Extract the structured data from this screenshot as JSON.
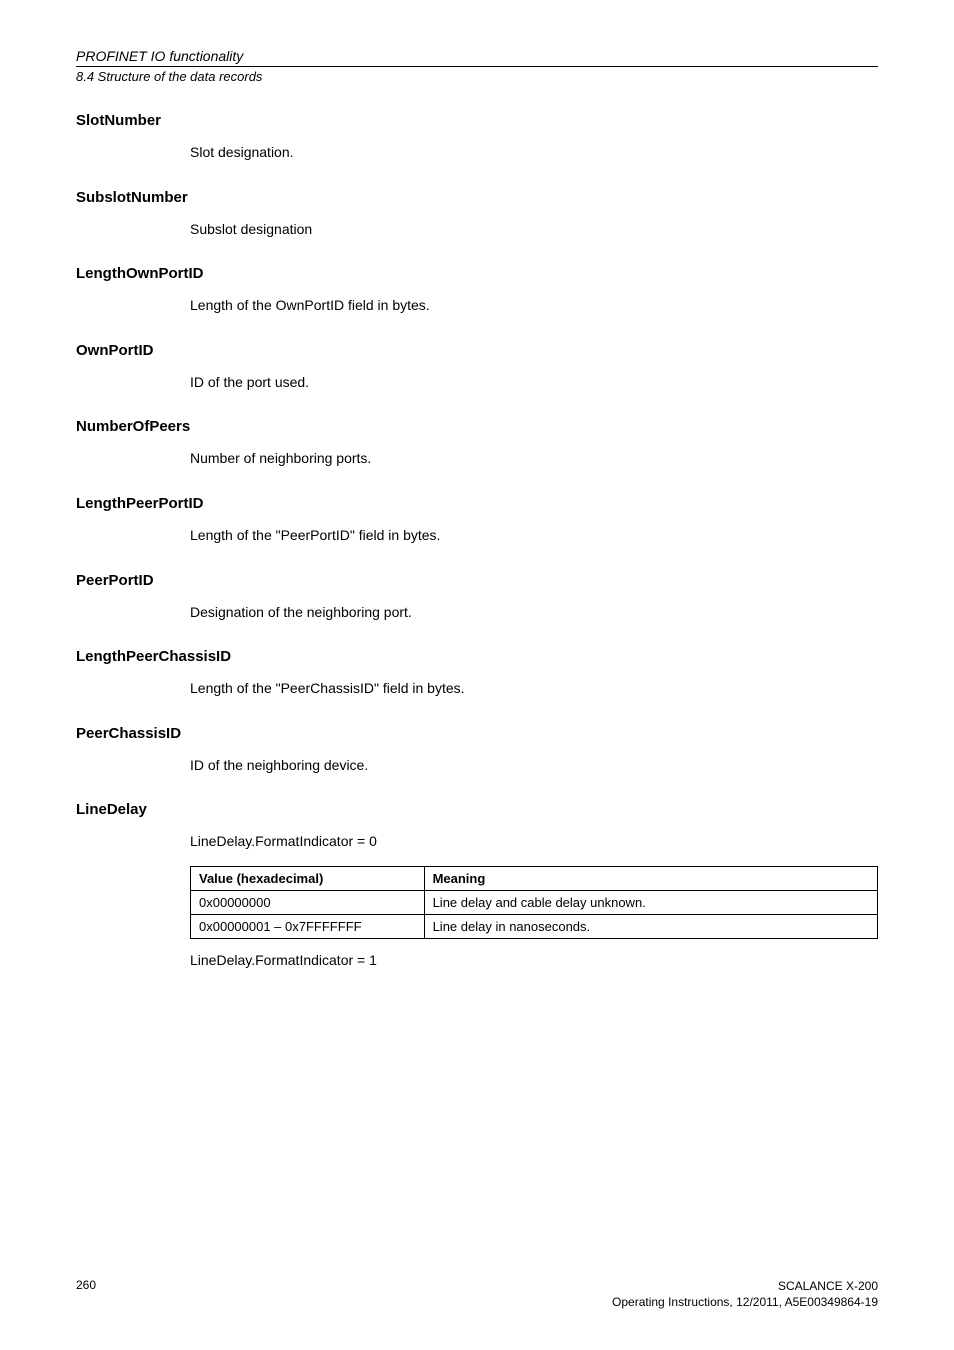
{
  "header": {
    "title_italic": "PROFINET IO functionality",
    "subtitle_italic": "8.4 Structure of the data records"
  },
  "sections": {
    "slotNumber": {
      "heading": "SlotNumber",
      "body": "Slot designation."
    },
    "subslotNumber": {
      "heading": "SubslotNumber",
      "body": "Subslot designation"
    },
    "lengthOwnPortID": {
      "heading": "LengthOwnPortID",
      "body": "Length of the OwnPortID field in bytes."
    },
    "ownPortID": {
      "heading": "OwnPortID",
      "body": "ID of the port used."
    },
    "numberOfPeers": {
      "heading": "NumberOfPeers",
      "body": "Number of neighboring ports."
    },
    "lengthPeerPortID": {
      "heading": "LengthPeerPortID",
      "body": "Length of the \"PeerPortID\" field in bytes."
    },
    "peerPortID": {
      "heading": "PeerPortID",
      "body": "Designation of the neighboring port."
    },
    "lengthPeerChassisID": {
      "heading": "LengthPeerChassisID",
      "body": "Length of the \"PeerChassisID\" field in bytes."
    },
    "peerChassisID": {
      "heading": "PeerChassisID",
      "body": "ID of the neighboring device."
    },
    "lineDelay": {
      "heading": "LineDelay",
      "body1": "LineDelay.FormatIndicator = 0",
      "table": {
        "col_value_header": "Value (hexadecimal)",
        "col_meaning_header": "Meaning",
        "rows": [
          {
            "value": "0x00000000",
            "meaning": "Line delay and cable delay unknown."
          },
          {
            "value": "0x00000001 – 0x7FFFFFFF",
            "meaning": "Line delay in nanoseconds."
          }
        ]
      },
      "body2": "LineDelay.FormatIndicator = 1"
    }
  },
  "footer": {
    "page": "260",
    "right_line1": "SCALANCE X-200",
    "right_line2": "Operating Instructions, 12/2011, A5E00349864-19"
  }
}
